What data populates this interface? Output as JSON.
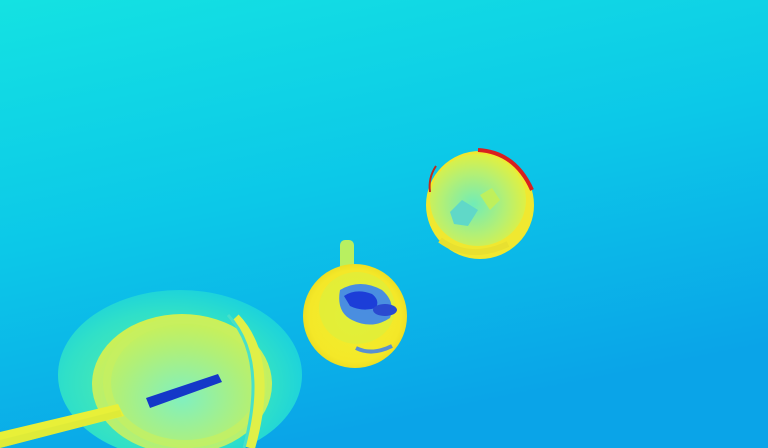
{
  "image": {
    "kind": "depth-map-visualization",
    "colormap": "jet",
    "description_colors": {
      "background_top": "#10e0e4",
      "background_bottom": "#0aa8e8",
      "near_yellow": "#f0f030",
      "mid_green": "#a8f070",
      "far_blue": "#1040d0",
      "edge_red": "#d82020"
    },
    "objects": [
      {
        "name": "large-bowl-with-spoon"
      },
      {
        "name": "mug-with-handle"
      },
      {
        "name": "small-cup"
      }
    ]
  }
}
